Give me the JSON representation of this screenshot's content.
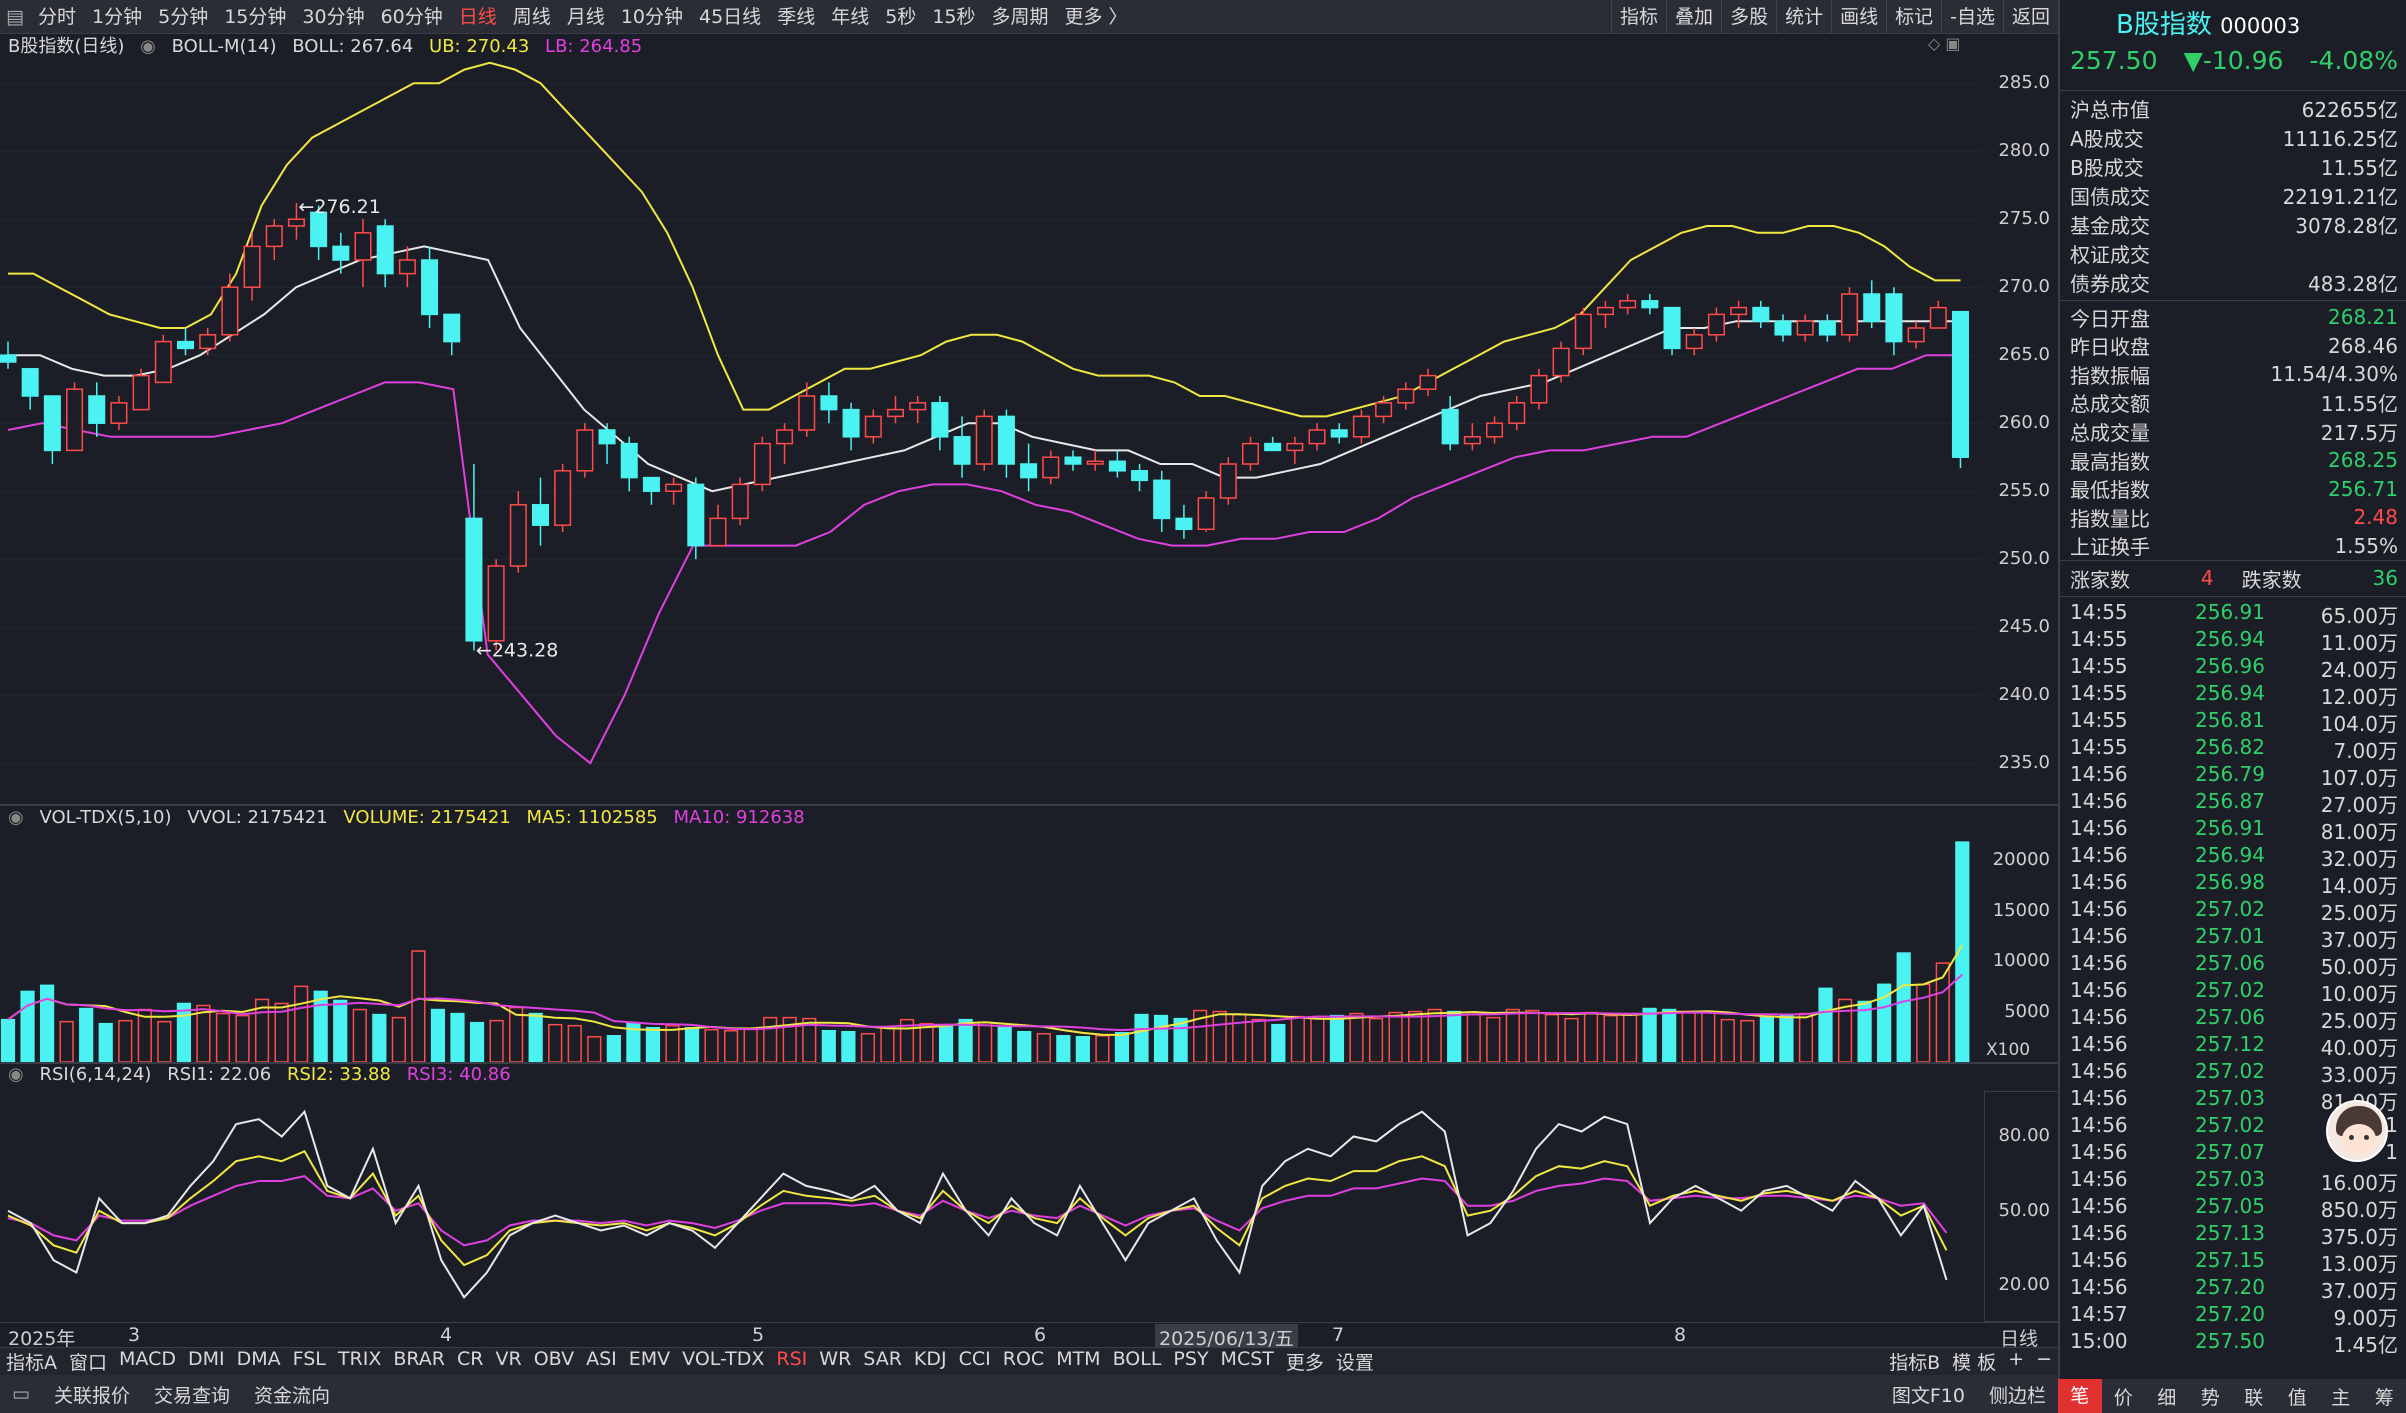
{
  "topbar": {
    "timeframes": [
      "分时",
      "1分钟",
      "5分钟",
      "15分钟",
      "30分钟",
      "60分钟",
      "日线",
      "周线",
      "月线",
      "10分钟",
      "45日线",
      "季线",
      "年线",
      "5秒",
      "15秒",
      "多周期",
      "更多 〉"
    ],
    "active": "日线",
    "right_buttons": [
      "指标",
      "叠加",
      "多股",
      "统计",
      "画线",
      "标记",
      "-自选",
      "返回"
    ]
  },
  "main_panel": {
    "name": "B股指数(日线)",
    "indicator": "BOLL-M(14)",
    "boll": "BOLL: 267.64",
    "ub": "UB: 270.43",
    "lb": "LB: 264.85",
    "y_ticks": [
      "285.0",
      "280.0",
      "275.0",
      "270.0",
      "265.0",
      "260.0",
      "255.0",
      "250.0",
      "245.0",
      "240.0",
      "235.0"
    ],
    "high_label": "276.21",
    "low_label": "243.28"
  },
  "vol_panel": {
    "indicator": "VOL-TDX(5,10)",
    "vvol": "VVOL: 2175421",
    "volume": "VOLUME: 2175421",
    "ma5": "MA5: 1102585",
    "ma10": "MA10: 912638",
    "y_ticks": [
      "20000",
      "15000",
      "10000",
      "5000"
    ],
    "unit": "X100"
  },
  "rsi_panel": {
    "indicator": "RSI(6,14,24)",
    "rsi1": "RSI1: 22.06",
    "rsi2": "RSI2: 33.88",
    "rsi3": "RSI3: 40.86",
    "y_ticks": [
      "80.00",
      "50.00",
      "20.00"
    ]
  },
  "time_axis": {
    "labels": [
      "2025年",
      "3",
      "4",
      "5",
      "6",
      "2025/06/13/五",
      "7",
      "8"
    ],
    "period": "日线"
  },
  "indicator_bar": {
    "items": [
      "指标A",
      "窗口",
      "MACD",
      "DMI",
      "DMA",
      "FSL",
      "TRIX",
      "BRAR",
      "CR",
      "VR",
      "OBV",
      "ASI",
      "EMV",
      "VOL-TDX",
      "RSI",
      "WR",
      "SAR",
      "KDJ",
      "CCI",
      "ROC",
      "MTM",
      "BOLL",
      "PSY",
      "MCST",
      "更多",
      "设置"
    ],
    "active": "RSI",
    "right": [
      "指标B",
      "模 板",
      "+",
      "−"
    ]
  },
  "bottom_bar": {
    "items": [
      "关联报价",
      "交易查询",
      "资金流向"
    ],
    "right": [
      "图文F10",
      "侧边栏"
    ]
  },
  "side": {
    "title": "B股指数",
    "code": "000003",
    "price": "257.50",
    "change": "▼-10.96",
    "pct": "-4.08%",
    "stats": [
      {
        "k": "沪总市值",
        "v": "622655亿",
        "c": ""
      },
      {
        "k": "A股成交",
        "v": "11116.25亿",
        "c": ""
      },
      {
        "k": "B股成交",
        "v": "11.55亿",
        "c": ""
      },
      {
        "k": "国债成交",
        "v": "22191.21亿",
        "c": ""
      },
      {
        "k": "基金成交",
        "v": "3078.28亿",
        "c": ""
      },
      {
        "k": "权证成交",
        "v": "",
        "c": ""
      },
      {
        "k": "债券成交",
        "v": "483.28亿",
        "c": ""
      }
    ],
    "stats2": [
      {
        "k": "今日开盘",
        "v": "268.21",
        "c": "green"
      },
      {
        "k": "昨日收盘",
        "v": "268.46",
        "c": ""
      },
      {
        "k": "指数振幅",
        "v": "11.54/4.30%",
        "c": ""
      },
      {
        "k": "总成交额",
        "v": "11.55亿",
        "c": ""
      },
      {
        "k": "总成交量",
        "v": "217.5万",
        "c": ""
      },
      {
        "k": "最高指数",
        "v": "268.25",
        "c": "green"
      },
      {
        "k": "最低指数",
        "v": "256.71",
        "c": "green"
      },
      {
        "k": "指数量比",
        "v": "2.48",
        "c": "red"
      },
      {
        "k": "上证换手",
        "v": "1.55%",
        "c": ""
      }
    ],
    "up_label": "涨家数",
    "up": "4",
    "down_label": "跌家数",
    "down": "36",
    "ticks": [
      [
        "14:55",
        "256.91",
        "65.00万"
      ],
      [
        "14:55",
        "256.94",
        "11.00万"
      ],
      [
        "14:55",
        "256.96",
        "24.00万"
      ],
      [
        "14:55",
        "256.94",
        "12.00万"
      ],
      [
        "14:55",
        "256.81",
        "104.0万"
      ],
      [
        "14:55",
        "256.82",
        "7.00万"
      ],
      [
        "14:56",
        "256.79",
        "107.0万"
      ],
      [
        "14:56",
        "256.87",
        "27.00万"
      ],
      [
        "14:56",
        "256.91",
        "81.00万"
      ],
      [
        "14:56",
        "256.94",
        "32.00万"
      ],
      [
        "14:56",
        "256.98",
        "14.00万"
      ],
      [
        "14:56",
        "257.02",
        "25.00万"
      ],
      [
        "14:56",
        "257.01",
        "37.00万"
      ],
      [
        "14:56",
        "257.06",
        "50.00万"
      ],
      [
        "14:56",
        "257.02",
        "10.00万"
      ],
      [
        "14:56",
        "257.06",
        "25.00万"
      ],
      [
        "14:56",
        "257.12",
        "40.00万"
      ],
      [
        "14:56",
        "257.02",
        "33.00万"
      ],
      [
        "14:56",
        "257.03",
        "81.00万"
      ],
      [
        "14:56",
        "257.02",
        "1"
      ],
      [
        "14:56",
        "257.07",
        "1"
      ],
      [
        "14:56",
        "257.03",
        "16.00万"
      ],
      [
        "14:56",
        "257.05",
        "850.0万"
      ],
      [
        "14:56",
        "257.13",
        "375.0万"
      ],
      [
        "14:56",
        "257.15",
        "13.00万"
      ],
      [
        "14:56",
        "257.20",
        "37.00万"
      ],
      [
        "14:57",
        "257.20",
        "9.00万"
      ],
      [
        "15:00",
        "257.50",
        "1.45亿"
      ]
    ],
    "tabs": [
      "笔",
      "价",
      "细",
      "势",
      "联",
      "值",
      "主",
      "筹"
    ],
    "active_tab": "笔"
  },
  "chart_data": {
    "type": "candlestick",
    "y_range": [
      232,
      287
    ],
    "ub": [
      271,
      271,
      270,
      269,
      268,
      267.5,
      267,
      267,
      268,
      271,
      276,
      279,
      281,
      282,
      283,
      284,
      285,
      285,
      286,
      286.5,
      286,
      285,
      283,
      281,
      279,
      277,
      274,
      270,
      265,
      261,
      261,
      262,
      263,
      264,
      264,
      264.5,
      265,
      266,
      266.5,
      266.5,
      266,
      265,
      264,
      263.5,
      263.5,
      263.5,
      263,
      262,
      262,
      261.5,
      261,
      260.5,
      260.5,
      261,
      261.5,
      262,
      263,
      264,
      265,
      266,
      266.5,
      267,
      268,
      270,
      272,
      273,
      274,
      274.5,
      274.5,
      274,
      274,
      274.5,
      274.5,
      274,
      273,
      271.5,
      270.5,
      270.5
    ],
    "mid": [
      265,
      265,
      264,
      263.5,
      263.5,
      264,
      265,
      266.5,
      268,
      270,
      271,
      272,
      272.5,
      273,
      272.5,
      272,
      267,
      264,
      261,
      259,
      257,
      256,
      255,
      255.5,
      256,
      256.5,
      257,
      257.5,
      258,
      259,
      260,
      260,
      259,
      258.5,
      258,
      258,
      257,
      257,
      256,
      256,
      256.5,
      257,
      258,
      259,
      260,
      261,
      262,
      262.5,
      263,
      264,
      265,
      266,
      267,
      267,
      267.5,
      267.5,
      267.5,
      267.5,
      267.5,
      267.5,
      267.5,
      267.5
    ],
    "lb": [
      259.5,
      260,
      259.5,
      259,
      259,
      259,
      259,
      259.5,
      260,
      261,
      262,
      263,
      263,
      262.5,
      243,
      240,
      237,
      235,
      240,
      246,
      251,
      251,
      251,
      251,
      252,
      254,
      255,
      255.5,
      255.5,
      255,
      254,
      253.5,
      252.5,
      251.5,
      251,
      251,
      251.5,
      251.5,
      252,
      252,
      253,
      254.5,
      255.5,
      256.5,
      257.5,
      258,
      258,
      258.5,
      259,
      259,
      260,
      261,
      262,
      263,
      264,
      264,
      265,
      265
    ],
    "candles": [
      [
        265,
        266,
        264,
        264.5
      ],
      [
        264,
        264,
        261,
        262
      ],
      [
        262,
        262,
        257,
        258
      ],
      [
        258,
        263,
        258,
        262.5
      ],
      [
        262,
        263,
        259,
        260
      ],
      [
        260,
        262,
        259.5,
        261.5
      ],
      [
        261,
        264,
        261,
        263.5
      ],
      [
        263,
        266.5,
        263,
        266
      ],
      [
        266,
        267,
        265,
        265.5
      ],
      [
        265.5,
        267,
        265,
        266.5
      ],
      [
        266.5,
        271,
        266,
        270
      ],
      [
        270,
        274,
        269,
        273
      ],
      [
        273,
        275,
        272,
        274.5
      ],
      [
        274.5,
        276.2,
        273.5,
        275
      ],
      [
        275.5,
        276,
        272,
        273
      ],
      [
        273,
        274,
        271,
        272
      ],
      [
        272,
        275,
        270,
        274
      ],
      [
        274.5,
        275,
        270,
        271
      ],
      [
        271,
        273,
        270,
        272
      ],
      [
        272,
        273,
        267,
        268
      ],
      [
        268,
        268,
        265,
        266
      ],
      [
        253,
        257,
        243.3,
        244
      ],
      [
        244,
        250,
        243.3,
        249.5
      ],
      [
        249.5,
        255,
        249,
        254
      ],
      [
        254,
        256,
        251,
        252.5
      ],
      [
        252.5,
        257,
        252,
        256.5
      ],
      [
        256.5,
        260,
        256,
        259.5
      ],
      [
        259.5,
        260,
        257,
        258.5
      ],
      [
        258.5,
        259,
        255,
        256
      ],
      [
        256,
        256,
        254,
        255
      ],
      [
        255,
        256,
        254,
        255.5
      ],
      [
        255.5,
        256,
        250,
        251
      ],
      [
        251,
        254,
        251,
        253
      ],
      [
        253,
        256,
        252.5,
        255.5
      ],
      [
        255.5,
        259,
        255,
        258.5
      ],
      [
        258.5,
        260,
        257,
        259.5
      ],
      [
        259.5,
        263,
        259,
        262
      ],
      [
        262,
        263,
        260,
        261
      ],
      [
        261,
        261.5,
        258,
        259
      ],
      [
        259,
        261,
        258.5,
        260.5
      ],
      [
        260.5,
        262,
        260,
        261
      ],
      [
        261,
        262,
        260,
        261.5
      ],
      [
        261.5,
        262,
        258,
        259
      ],
      [
        259,
        260.5,
        256,
        257
      ],
      [
        257,
        261,
        256.5,
        260.5
      ],
      [
        260.5,
        261,
        256,
        257
      ],
      [
        257,
        258.5,
        255,
        256
      ],
      [
        256,
        258,
        255.5,
        257.5
      ],
      [
        257.5,
        258,
        256.5,
        257
      ],
      [
        257,
        258,
        256.5,
        257.2
      ],
      [
        257.2,
        258,
        256,
        256.5
      ],
      [
        256.5,
        257,
        255,
        255.8
      ],
      [
        255.8,
        256.5,
        252,
        253
      ],
      [
        253,
        254,
        251.5,
        252.2
      ],
      [
        252.2,
        255,
        252,
        254.5
      ],
      [
        254.5,
        257.5,
        254,
        257
      ],
      [
        257,
        259,
        256.5,
        258.5
      ],
      [
        258.5,
        259,
        258,
        258
      ],
      [
        258,
        259,
        257,
        258.5
      ],
      [
        258.5,
        260,
        258,
        259.5
      ],
      [
        259.5,
        260,
        258.5,
        259
      ],
      [
        259,
        261,
        258.5,
        260.5
      ],
      [
        260.5,
        262,
        260,
        261.5
      ],
      [
        261.5,
        263,
        261,
        262.5
      ],
      [
        262.5,
        264,
        262,
        263.5
      ],
      [
        261,
        262,
        258,
        258.5
      ],
      [
        258.5,
        260,
        258,
        259
      ],
      [
        259,
        260.5,
        258.5,
        260
      ],
      [
        260,
        262,
        259.5,
        261.5
      ],
      [
        261.5,
        264,
        261,
        263.5
      ],
      [
        263.5,
        266,
        263,
        265.5
      ],
      [
        265.5,
        268.5,
        265,
        268
      ],
      [
        268,
        269,
        267,
        268.5
      ],
      [
        268.5,
        269.5,
        268,
        269
      ],
      [
        269,
        269.5,
        268,
        268.5
      ],
      [
        268.5,
        268.5,
        265,
        265.5
      ],
      [
        265.5,
        267,
        265,
        266.5
      ],
      [
        266.5,
        268.5,
        266,
        268
      ],
      [
        268,
        269,
        267,
        268.5
      ],
      [
        268.5,
        269,
        267,
        267.5
      ],
      [
        267.5,
        268,
        266,
        266.5
      ],
      [
        266.5,
        268,
        266,
        267.5
      ],
      [
        267.5,
        268,
        266,
        266.5
      ],
      [
        266.5,
        270,
        266,
        269.5
      ],
      [
        269.5,
        270.5,
        267,
        267.5
      ],
      [
        269.5,
        270,
        265,
        266
      ],
      [
        266,
        267.5,
        265.5,
        267
      ],
      [
        267,
        269,
        267,
        268.5
      ],
      [
        268.2,
        268.25,
        256.7,
        257.5
      ]
    ],
    "volumes": [
      4200,
      7000,
      7600,
      4000,
      5300,
      3800,
      4100,
      5200,
      4000,
      5800,
      5600,
      4800,
      4600,
      6200,
      5800,
      7500,
      7000,
      6100,
      5200,
      4700,
      4400,
      11000,
      5200,
      4800,
      3900,
      4100,
      5400,
      4800,
      3700,
      3600,
      2500,
      2600,
      3800,
      3400,
      3600,
      3400,
      3200,
      3100,
      3300,
      4400,
      4400,
      4300,
      3100,
      3000,
      2800,
      3500,
      4200,
      3800,
      3600,
      4200,
      3900,
      3500,
      3000,
      2800,
      2600,
      2500,
      2600,
      2900,
      4700,
      4600,
      4300,
      5100,
      5000,
      4700,
      4200,
      3700,
      4500,
      4300,
      4600,
      4800,
      4300,
      4900,
      5000,
      5200,
      5000,
      4700,
      4400,
      5200,
      5100,
      4700,
      4300,
      4900,
      4600,
      4800,
      5300,
      5200,
      5000,
      4900,
      4200,
      4100,
      4400,
      4600,
      4800,
      7300,
      6200,
      6000,
      7700,
      10800,
      7700,
      9800,
      21800
    ],
    "rsi1": [
      50,
      45,
      30,
      25,
      55,
      45,
      45,
      48,
      60,
      70,
      85,
      87,
      80,
      90,
      60,
      55,
      75,
      45,
      60,
      30,
      15,
      25,
      40,
      45,
      48,
      45,
      42,
      44,
      40,
      45,
      42,
      35,
      45,
      55,
      65,
      60,
      58,
      55,
      60,
      50,
      45,
      65,
      50,
      40,
      55,
      45,
      40,
      60,
      45,
      30,
      45,
      50,
      55,
      38,
      25,
      60,
      70,
      75,
      72,
      80,
      78,
      85,
      90,
      82,
      40,
      45,
      58,
      75,
      85,
      82,
      88,
      85,
      45,
      55,
      60,
      55,
      50,
      58,
      60,
      55,
      50,
      62,
      55,
      40,
      52,
      22
    ],
    "rsi2": [
      48,
      44,
      36,
      33,
      50,
      45,
      45,
      47,
      55,
      62,
      70,
      72,
      70,
      74,
      58,
      55,
      65,
      48,
      56,
      38,
      28,
      32,
      42,
      45,
      46,
      45,
      44,
      45,
      42,
      45,
      43,
      40,
      45,
      52,
      58,
      56,
      55,
      54,
      56,
      50,
      47,
      58,
      50,
      45,
      52,
      47,
      45,
      55,
      47,
      40,
      47,
      50,
      52,
      43,
      36,
      55,
      60,
      63,
      62,
      66,
      66,
      70,
      72,
      68,
      48,
      50,
      56,
      64,
      68,
      67,
      70,
      68,
      52,
      56,
      58,
      56,
      54,
      57,
      58,
      56,
      54,
      58,
      55,
      48,
      52,
      34
    ],
    "rsi3": [
      47,
      45,
      40,
      38,
      48,
      46,
      46,
      47,
      52,
      56,
      60,
      62,
      62,
      64,
      56,
      55,
      59,
      50,
      53,
      42,
      36,
      38,
      44,
      46,
      46,
      46,
      45,
      46,
      44,
      46,
      45,
      43,
      46,
      50,
      53,
      53,
      53,
      52,
      53,
      50,
      48,
      54,
      50,
      47,
      50,
      48,
      47,
      52,
      48,
      44,
      48,
      50,
      51,
      46,
      42,
      51,
      54,
      56,
      56,
      59,
      59,
      61,
      63,
      62,
      52,
      52,
      54,
      58,
      60,
      61,
      63,
      62,
      54,
      55,
      56,
      55,
      55,
      56,
      56,
      55,
      54,
      56,
      55,
      52,
      53,
      41
    ]
  }
}
